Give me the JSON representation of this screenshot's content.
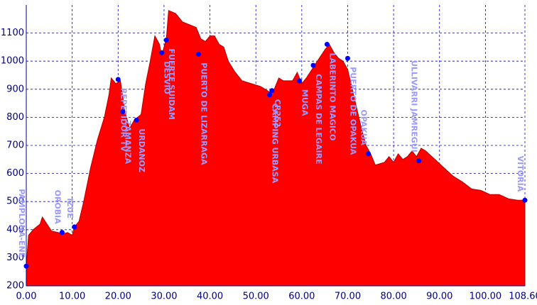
{
  "chart_data": {
    "type": "area",
    "x": [
      0,
      0.5,
      1.5,
      3,
      3.5,
      4.5,
      5.5,
      7,
      8,
      9,
      10,
      10.5,
      11.5,
      12.5,
      14,
      15.5,
      17,
      18,
      18.5,
      19.5,
      20.5,
      21.5,
      22.5,
      23.5,
      25,
      26,
      27,
      28,
      29,
      29.5,
      30.5,
      31,
      32.5,
      34,
      35.5,
      37,
      38,
      39,
      40,
      41,
      42,
      43,
      44,
      45.5,
      47,
      49,
      51,
      53,
      54,
      55,
      56,
      58,
      59,
      60,
      61,
      63,
      65,
      66,
      67,
      68,
      69,
      70,
      71,
      72,
      73,
      74,
      75,
      76,
      78,
      79,
      80,
      81,
      82,
      83,
      84,
      85,
      86,
      87,
      89,
      91,
      93,
      95,
      97,
      99,
      101,
      103,
      105,
      107,
      108.6
    ],
    "values": [
      270,
      380,
      400,
      420,
      445,
      420,
      395,
      390,
      385,
      390,
      380,
      410,
      430,
      500,
      620,
      720,
      800,
      880,
      940,
      920,
      930,
      820,
      760,
      790,
      810,
      920,
      1000,
      1090,
      1060,
      1020,
      1080,
      1180,
      1170,
      1140,
      1130,
      1120,
      1080,
      1070,
      1090,
      1090,
      1060,
      1050,
      1000,
      960,
      930,
      920,
      910,
      890,
      900,
      940,
      930,
      930,
      960,
      920,
      940,
      990,
      1040,
      1060,
      1030,
      1010,
      1000,
      970,
      900,
      830,
      760,
      700,
      670,
      630,
      640,
      660,
      640,
      670,
      650,
      660,
      680,
      660,
      690,
      680,
      650,
      620,
      590,
      570,
      545,
      540,
      525,
      525,
      510,
      505,
      505
    ],
    "color": "#ff0000",
    "waypoints": [
      {
        "name": "PAMPLONA-ENE",
        "x": 0,
        "elev": 270
      },
      {
        "name": "OROBIA",
        "x": 7.8,
        "elev": 390
      },
      {
        "name": "IZUE",
        "x": 10.5,
        "elev": 410
      },
      {
        "name": "REPETIDOR TV",
        "x": 20,
        "elev": 935
      },
      {
        "name": "ZAMANZA",
        "x": 21,
        "elev": 820
      },
      {
        "name": "URDANOZ",
        "x": 24,
        "elev": 790
      },
      {
        "name": "DESVIO",
        "x": 29.5,
        "elev": 1030
      },
      {
        "name": "FUERTE SUIDAM",
        "x": 30.5,
        "elev": 1075
      },
      {
        "name": "PUERTO DE LIZARRAGA",
        "x": 37.5,
        "elev": 1025
      },
      {
        "name": "CAMPING URBASA",
        "x": 53,
        "elev": 880
      },
      {
        "name": "CR252",
        "x": 53.5,
        "elev": 895
      },
      {
        "name": "MUGA",
        "x": 59.5,
        "elev": 930
      },
      {
        "name": "CAMPAS DE LEGAIRE",
        "x": 62.5,
        "elev": 985
      },
      {
        "name": "LABERINTO MAGICO",
        "x": 65.5,
        "elev": 1060
      },
      {
        "name": "PUERTO DE OPAKUA",
        "x": 70,
        "elev": 1010
      },
      {
        "name": "OPAKUA",
        "x": 74.5,
        "elev": 670
      },
      {
        "name": "ULLIVARRI JAMREGUI",
        "x": 85.5,
        "elev": 645
      },
      {
        "name": "VITORIA",
        "x": 108.6,
        "elev": 505
      }
    ],
    "xlim": [
      0,
      108.6
    ],
    "xticks": [
      {
        "value": 0,
        "label": "0.00"
      },
      {
        "value": 10,
        "label": "10.00"
      },
      {
        "value": 20,
        "label": "20.00"
      },
      {
        "value": 30,
        "label": "30.00"
      },
      {
        "value": 40,
        "label": "40.00"
      },
      {
        "value": 50,
        "label": "50.00"
      },
      {
        "value": 60,
        "label": "60.00"
      },
      {
        "value": 70,
        "label": "70.00"
      },
      {
        "value": 80,
        "label": "80.00"
      },
      {
        "value": 90,
        "label": "90.00"
      },
      {
        "value": 100,
        "label": "100.00"
      },
      {
        "value": 108.6,
        "label": "108.60"
      }
    ],
    "ylim": [
      200,
      1200
    ],
    "yticks": [
      200,
      300,
      400,
      500,
      600,
      700,
      800,
      900,
      1000,
      1100
    ],
    "grid": true
  }
}
